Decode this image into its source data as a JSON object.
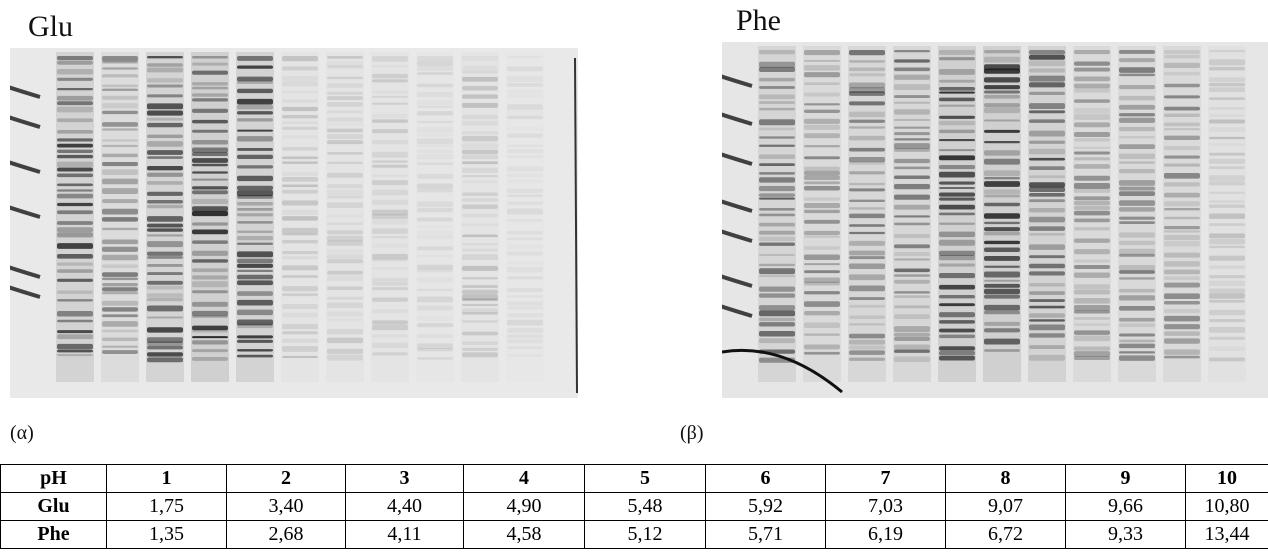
{
  "panels": [
    {
      "title": "Glu",
      "caption": "(α)"
    },
    {
      "title": "Phe",
      "caption": "(β)"
    }
  ],
  "table": {
    "header": [
      "pH",
      "1",
      "2",
      "3",
      "4",
      "5",
      "6",
      "7",
      "8",
      "9",
      "10"
    ],
    "rows": [
      [
        "Glu",
        "1,75",
        "3,40",
        "4,40",
        "4,90",
        "5,48",
        "5,92",
        "7,03",
        "9,07",
        "9,66",
        "10,80"
      ],
      [
        "Phe",
        "1,35",
        "2,68",
        "4,11",
        "4,58",
        "5,12",
        "5,71",
        "6,19",
        "6,72",
        "9,33",
        "13,44"
      ]
    ]
  }
}
